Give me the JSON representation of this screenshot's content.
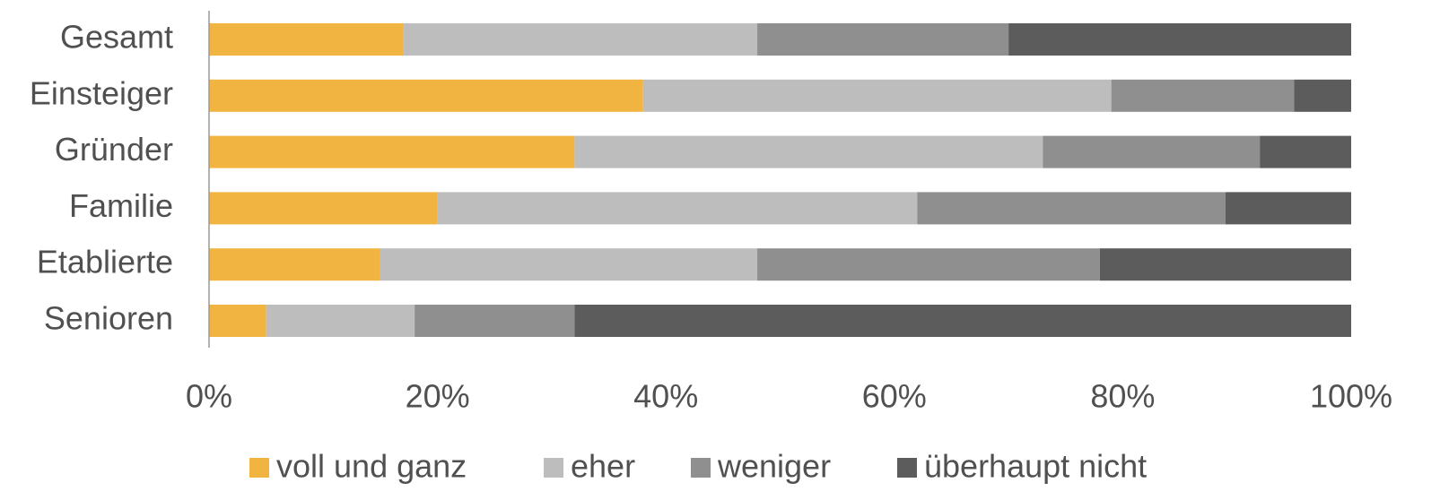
{
  "chart_data": {
    "type": "stacked-bar-horizontal",
    "categories": [
      "Gesamt",
      "Einsteiger",
      "Gründer",
      "Familie",
      "Etablierte",
      "Senioren"
    ],
    "series": [
      {
        "name": "voll und ganz",
        "color": "#f2b441",
        "values": [
          17,
          38,
          32,
          20,
          15,
          5
        ]
      },
      {
        "name": "eher",
        "color": "#bdbdbd",
        "values": [
          31,
          41,
          41,
          42,
          33,
          13
        ]
      },
      {
        "name": "weniger",
        "color": "#8f8f8f",
        "values": [
          22,
          16,
          19,
          27,
          30,
          14
        ]
      },
      {
        "name": "überhaupt nicht",
        "color": "#5c5c5c",
        "values": [
          30,
          5,
          8,
          11,
          22,
          68
        ]
      }
    ],
    "xlim": [
      0,
      100
    ],
    "xticks": [
      {
        "value": 0,
        "label": "0%"
      },
      {
        "value": 20,
        "label": "20%"
      },
      {
        "value": 40,
        "label": "40%"
      },
      {
        "value": 60,
        "label": "60%"
      },
      {
        "value": 80,
        "label": "80%"
      },
      {
        "value": 100,
        "label": "100%"
      }
    ],
    "legend": "bottom"
  }
}
